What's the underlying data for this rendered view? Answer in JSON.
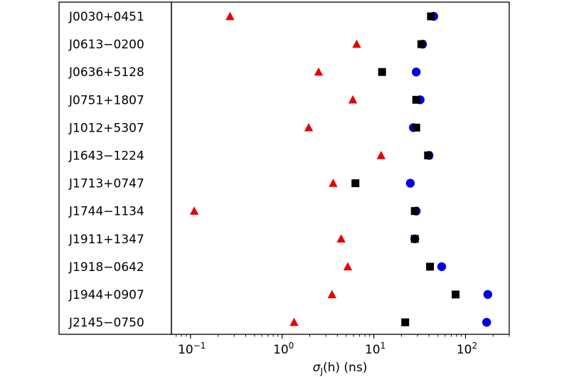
{
  "chart_data": {
    "type": "scatter",
    "title": "",
    "xlabel": {
      "symbol": "σ",
      "subscript": "J",
      "rest": "(h) (ns)"
    },
    "xscale": "log",
    "xlim": [
      0.062,
      300
    ],
    "xticks": [
      {
        "value": 0.1,
        "base": "10",
        "exp": "−1"
      },
      {
        "value": 1,
        "base": "10",
        "exp": "0"
      },
      {
        "value": 10,
        "base": "10",
        "exp": "1"
      },
      {
        "value": 100,
        "base": "10",
        "exp": "2"
      }
    ],
    "categories": [
      "J0030+0451",
      "J0613−0200",
      "J0636+5128",
      "J0751+1807",
      "J1012+5307",
      "J1643−1224",
      "J1713+0747",
      "J1744−1134",
      "J1911+1347",
      "J1918−0642",
      "J1944+0907",
      "J2145−0750"
    ],
    "series": [
      {
        "marker": "triangle",
        "color": "#e60000",
        "values": [
          0.27,
          6.5,
          2.5,
          5.9,
          1.95,
          12,
          3.6,
          0.11,
          4.4,
          5.2,
          3.5,
          1.35
        ]
      },
      {
        "marker": "circle",
        "color": "#0000e6",
        "values": [
          45,
          34,
          29,
          32,
          27,
          40,
          25,
          29,
          28,
          55,
          175,
          170
        ]
      },
      {
        "marker": "square",
        "color": "#000000",
        "values": [
          42,
          33,
          12.3,
          29,
          29,
          39,
          6.3,
          28,
          28,
          41,
          78,
          22
        ]
      }
    ],
    "grid": false,
    "legend": "none"
  }
}
